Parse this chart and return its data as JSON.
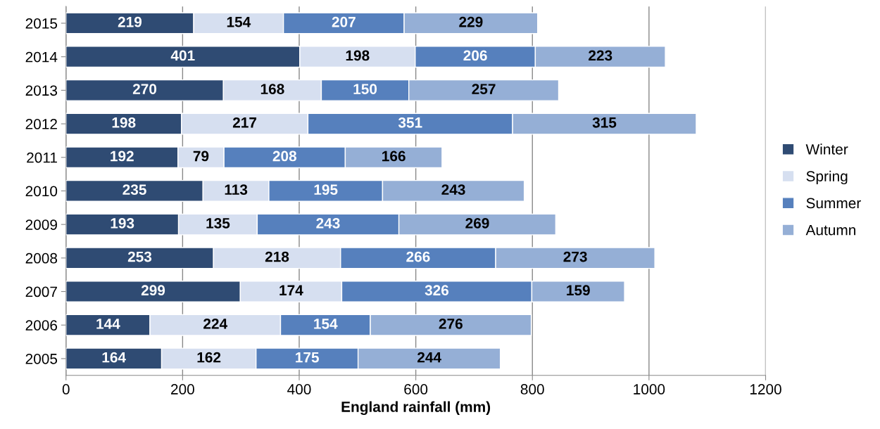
{
  "chart_data": {
    "type": "bar",
    "orientation": "horizontal",
    "stacked": true,
    "xlabel": "England rainfall (mm)",
    "categories": [
      "2015",
      "2014",
      "2013",
      "2012",
      "2011",
      "2010",
      "2009",
      "2008",
      "2007",
      "2006",
      "2005"
    ],
    "series": [
      {
        "name": "Winter",
        "color": "#2f4b73",
        "values": [
          219,
          401,
          270,
          198,
          192,
          235,
          193,
          253,
          299,
          144,
          164
        ]
      },
      {
        "name": "Spring",
        "color": "#d6dff0",
        "values": [
          154,
          198,
          168,
          217,
          79,
          113,
          135,
          218,
          174,
          224,
          162
        ]
      },
      {
        "name": "Summer",
        "color": "#5680bd",
        "values": [
          207,
          206,
          150,
          351,
          208,
          195,
          243,
          266,
          326,
          154,
          175
        ]
      },
      {
        "name": "Autumn",
        "color": "#95afd6",
        "values": [
          229,
          223,
          257,
          315,
          166,
          243,
          269,
          273,
          159,
          276,
          244
        ]
      }
    ],
    "xlim": [
      0,
      1200
    ],
    "xticks": [
      0,
      200,
      400,
      600,
      800,
      1000,
      1200
    ],
    "grid": "x",
    "legend": "right",
    "data_labels": true
  }
}
